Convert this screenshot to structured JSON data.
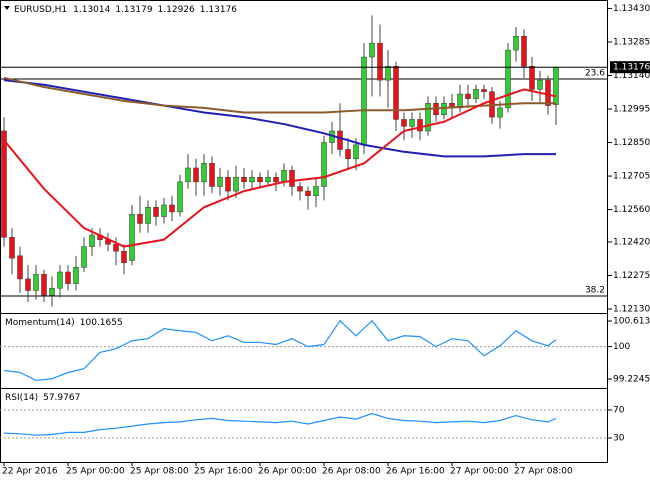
{
  "header": {
    "symbol": "EURUSD,H1"
  },
  "chart_data": [
    {
      "type": "candlestick",
      "open": [
        1.129,
        1.1244,
        1.1236,
        1.1226,
        1.1221,
        1.1228,
        1.1219,
        1.1222,
        1.1229,
        1.1224,
        1.1231,
        1.124,
        1.1245,
        1.1243,
        1.1241,
        1.1238,
        1.1234,
        1.1254,
        1.125,
        1.1257,
        1.1253,
        1.1258,
        1.1255,
        1.1268,
        1.1274,
        1.1268,
        1.1276,
        1.1266,
        1.127,
        1.1264,
        1.127,
        1.1268,
        1.127,
        1.1268,
        1.127,
        1.1268,
        1.1273,
        1.1266,
        1.1264,
        1.1262,
        1.1266,
        1.1285,
        1.129,
        1.1282,
        1.1278,
        1.1284,
        1.1322,
        1.1328,
        1.1312,
        1.1318,
        1.1295,
        1.1292,
        1.1295,
        1.129,
        1.1302,
        1.1297,
        1.1302,
        1.13,
        1.1306,
        1.1304,
        1.1308,
        1.1307,
        1.1296,
        1.13,
        1.1325,
        1.1331,
        1.1318,
        1.1308,
        1.1312,
        1.13014
      ],
      "high": [
        1.1296,
        1.1248,
        1.124,
        1.1232,
        1.1232,
        1.123,
        1.1227,
        1.1232,
        1.1232,
        1.1236,
        1.1244,
        1.1248,
        1.1248,
        1.1246,
        1.1244,
        1.1241,
        1.1258,
        1.1262,
        1.126,
        1.126,
        1.1261,
        1.1262,
        1.1271,
        1.128,
        1.1278,
        1.128,
        1.1279,
        1.1274,
        1.1273,
        1.1275,
        1.1274,
        1.1273,
        1.1272,
        1.1273,
        1.1272,
        1.1276,
        1.1275,
        1.1268,
        1.1266,
        1.127,
        1.1288,
        1.1294,
        1.1302,
        1.1287,
        1.1287,
        1.1328,
        1.134,
        1.1336,
        1.1325,
        1.132,
        1.1298,
        1.1298,
        1.1298,
        1.1305,
        1.1305,
        1.1305,
        1.1306,
        1.131,
        1.131,
        1.131,
        1.131,
        1.1309,
        1.1303,
        1.1328,
        1.1335,
        1.1334,
        1.1322,
        1.1316,
        1.1314,
        1.13179
      ],
      "low": [
        1.124,
        1.1228,
        1.122,
        1.1216,
        1.1217,
        1.1216,
        1.1214,
        1.1218,
        1.1221,
        1.1221,
        1.1229,
        1.1236,
        1.124,
        1.1238,
        1.1232,
        1.1228,
        1.1232,
        1.1246,
        1.1246,
        1.1249,
        1.125,
        1.1251,
        1.1253,
        1.1265,
        1.1262,
        1.1262,
        1.1263,
        1.1262,
        1.126,
        1.1261,
        1.1265,
        1.1265,
        1.1265,
        1.1266,
        1.1264,
        1.1266,
        1.1262,
        1.126,
        1.1256,
        1.1257,
        1.126,
        1.128,
        1.1279,
        1.1274,
        1.1273,
        1.128,
        1.1305,
        1.1305,
        1.13,
        1.129,
        1.1286,
        1.1287,
        1.1286,
        1.1288,
        1.1294,
        1.1295,
        1.1296,
        1.1298,
        1.13,
        1.1302,
        1.1304,
        1.1293,
        1.1291,
        1.1298,
        1.132,
        1.1313,
        1.1303,
        1.1302,
        1.1297,
        1.12926
      ],
      "close": [
        1.1244,
        1.1235,
        1.1226,
        1.1221,
        1.1228,
        1.1219,
        1.1222,
        1.1229,
        1.1224,
        1.1231,
        1.124,
        1.1245,
        1.1243,
        1.1241,
        1.1238,
        1.1233,
        1.1254,
        1.125,
        1.1257,
        1.1253,
        1.1258,
        1.1255,
        1.1268,
        1.1274,
        1.1268,
        1.1276,
        1.1266,
        1.127,
        1.1264,
        1.127,
        1.1268,
        1.127,
        1.1268,
        1.127,
        1.1268,
        1.1273,
        1.1266,
        1.1264,
        1.1262,
        1.1266,
        1.1285,
        1.129,
        1.1282,
        1.1278,
        1.1284,
        1.1322,
        1.1328,
        1.1312,
        1.1318,
        1.1295,
        1.1292,
        1.1295,
        1.129,
        1.1302,
        1.1297,
        1.1302,
        1.13,
        1.1306,
        1.1304,
        1.1308,
        1.1307,
        1.1296,
        1.13,
        1.1325,
        1.1331,
        1.1318,
        1.1308,
        1.1312,
        1.1301,
        1.13176
      ],
      "up_color": "#33cc33",
      "down_color": "#e8141b",
      "wick_color": "#444444",
      "ylim": [
        1.12117,
        1.13458
      ],
      "yticks": [
        {
          "value": 1.1343,
          "label": "1.13430"
        },
        1.13285,
        {
          "value": 1.1314,
          "label": "1.13140"
        },
        1.12995,
        {
          "value": 1.1285,
          "label": "1.12850"
        },
        1.12705,
        {
          "value": 1.1256,
          "label": "1.12560"
        },
        {
          "value": 1.1242,
          "label": "1.12420"
        },
        1.12275,
        {
          "value": 1.1213,
          "label": "1.12130"
        }
      ],
      "series": [
        {
          "color": "#1f1fb4",
          "x": [
            0,
            5,
            10,
            15,
            20,
            25,
            30,
            35,
            40,
            45,
            50,
            55,
            60,
            65,
            69
          ],
          "values": [
            1.1312,
            1.131,
            1.1307,
            1.1304,
            1.1301,
            1.1298,
            1.1296,
            1.1293,
            1.1289,
            1.1284,
            1.1281,
            1.1279,
            1.1279,
            1.128,
            1.128
          ]
        },
        {
          "color": "#8b5a2b",
          "x": [
            0,
            5,
            10,
            15,
            20,
            25,
            30,
            35,
            40,
            45,
            50,
            55,
            60,
            65,
            69
          ],
          "values": [
            1.1313,
            1.1309,
            1.1306,
            1.1303,
            1.1301,
            1.13,
            1.1298,
            1.1298,
            1.1298,
            1.1299,
            1.1299,
            1.13,
            1.1301,
            1.1302,
            1.1302
          ]
        },
        {
          "color": "#e8141b",
          "x": [
            0,
            5,
            10,
            15,
            20,
            25,
            30,
            35,
            40,
            45,
            50,
            55,
            60,
            65,
            69
          ],
          "values": [
            1.1286,
            1.1265,
            1.1248,
            1.124,
            1.1243,
            1.1257,
            1.1264,
            1.1268,
            1.127,
            1.1276,
            1.129,
            1.1294,
            1.1302,
            1.1308,
            1.1305
          ]
        }
      ],
      "levels": [
        {
          "value": 1.13125,
          "label": "23.6"
        },
        {
          "value": 1.12186,
          "label": "38.2"
        }
      ],
      "time_labels": [
        {
          "index": 0,
          "label": "22 Apr 2016"
        },
        {
          "index": 8,
          "label": "25 Apr 00:00"
        },
        {
          "index": 16,
          "label": "25 Apr 08:00"
        },
        {
          "index": 24,
          "label": "25 Apr 16:00"
        },
        {
          "index": 32,
          "label": "26 Apr 00:00"
        },
        {
          "index": 40,
          "label": "26 Apr 08:00"
        },
        {
          "index": 48,
          "label": "26 Apr 16:00"
        },
        {
          "index": 56,
          "label": "27 Apr 00:00"
        },
        {
          "index": 64,
          "label": "27 Apr 08:00"
        }
      ]
    },
    {
      "type": "line",
      "title": "Momentum(14)",
      "color": "#1e90ff",
      "x": [
        0,
        2,
        4,
        6,
        8,
        10,
        12,
        14,
        16,
        18,
        20,
        22,
        24,
        26,
        28,
        30,
        32,
        34,
        36,
        38,
        40,
        42,
        44,
        46,
        48,
        50,
        52,
        54,
        56,
        58,
        60,
        62,
        64,
        66,
        68,
        69
      ],
      "values": [
        99.43,
        99.38,
        99.19,
        99.23,
        99.38,
        99.47,
        99.86,
        99.95,
        100.14,
        100.19,
        100.43,
        100.38,
        100.34,
        100.14,
        100.26,
        100.1,
        100.1,
        100.05,
        100.19,
        100.0,
        100.05,
        100.62,
        100.26,
        100.62,
        100.14,
        100.26,
        100.24,
        100.0,
        100.19,
        100.14,
        99.78,
        100.02,
        100.38,
        100.14,
        100.02,
        100.1655
      ],
      "ylim": [
        99.033,
        100.781
      ],
      "yticks": [
        100.6135,
        100,
        99.2245
      ],
      "dotted_ticks": [
        100
      ]
    },
    {
      "type": "line",
      "title": "RSI(14)",
      "color": "#1e90ff",
      "x": [
        0,
        2,
        4,
        6,
        8,
        10,
        12,
        14,
        16,
        18,
        20,
        22,
        24,
        26,
        28,
        30,
        32,
        34,
        36,
        38,
        40,
        42,
        44,
        46,
        48,
        50,
        52,
        54,
        56,
        58,
        60,
        62,
        64,
        66,
        68,
        69
      ],
      "values": [
        37,
        36,
        34,
        35,
        38,
        38,
        42,
        44,
        47,
        50,
        52,
        53,
        56,
        58,
        55,
        54,
        53,
        52,
        54,
        50,
        55,
        60,
        57,
        65,
        58,
        55,
        54,
        52,
        53,
        54,
        52,
        55,
        62,
        56,
        53,
        57.9767
      ],
      "ylim": [
        0,
        100
      ],
      "yticks": [
        70,
        30
      ],
      "dotted_ticks": [
        70,
        30
      ]
    }
  ]
}
